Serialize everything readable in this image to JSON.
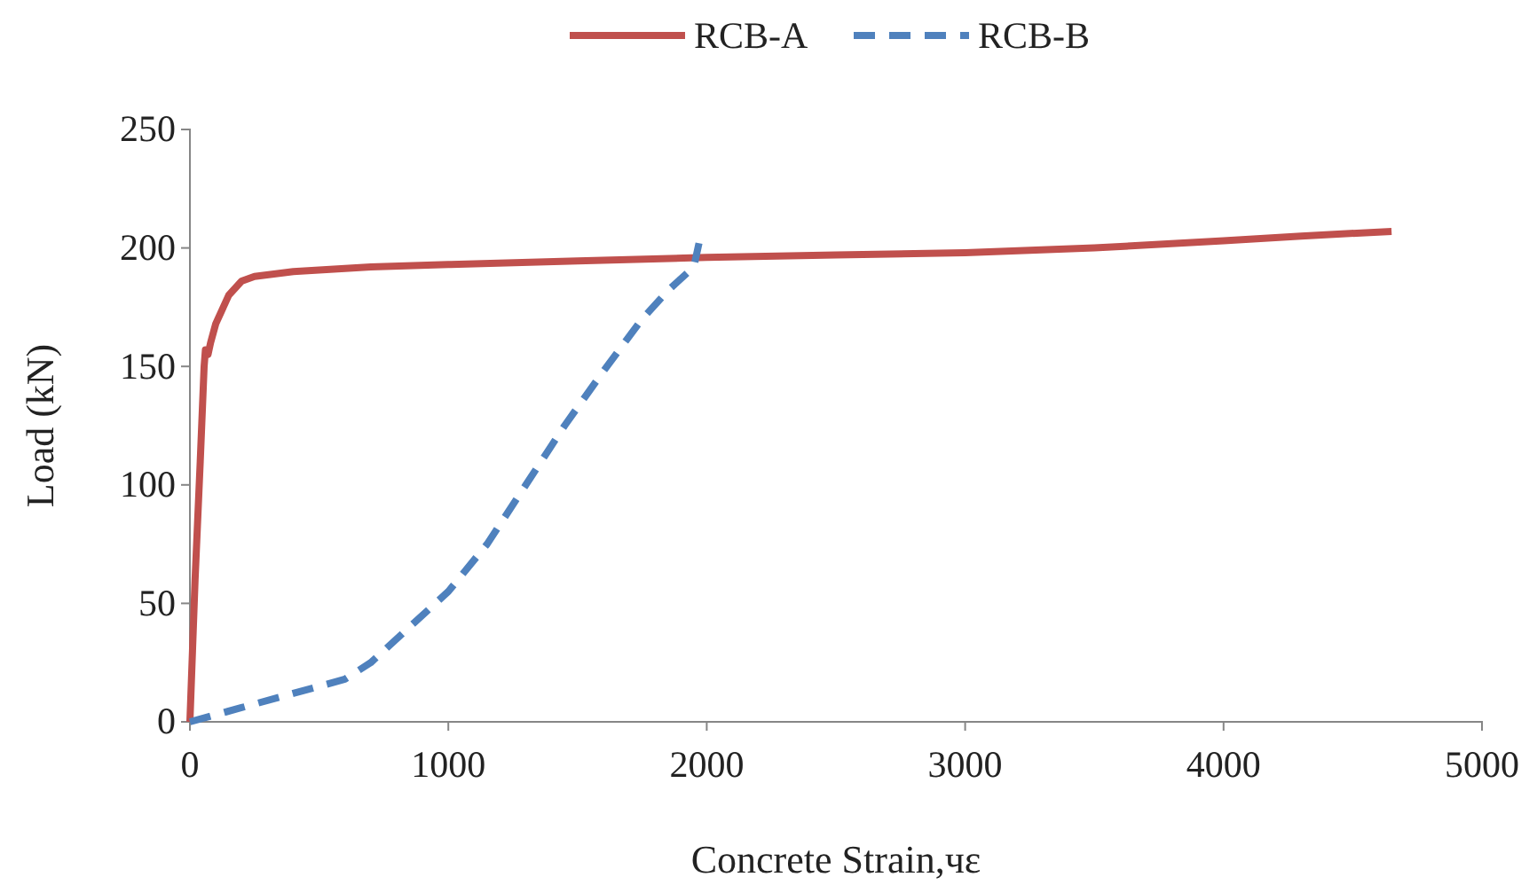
{
  "chart_data": {
    "type": "line",
    "xlabel": "Concrete Strain,чε",
    "ylabel": "Load (kN)",
    "xlim": [
      0,
      5000
    ],
    "xticks": [
      0,
      1000,
      2000,
      3000,
      4000,
      5000
    ],
    "ylim": [
      0,
      250
    ],
    "yticks": [
      0,
      50,
      100,
      150,
      200,
      250
    ],
    "grid": false,
    "legend": "top",
    "marker": "none",
    "series": [
      {
        "name": "RCB-A",
        "color": "#c0504d",
        "line_style": "solid",
        "x": [
          0,
          10,
          20,
          40,
          55,
          60,
          70,
          80,
          100,
          150,
          200,
          250,
          400,
          700,
          1000,
          1500,
          2000,
          2500,
          3000,
          3500,
          4000,
          4300,
          4650
        ],
        "values": [
          0,
          30,
          60,
          110,
          150,
          157,
          155,
          160,
          168,
          180,
          186,
          188,
          190,
          192,
          193,
          194.5,
          196,
          197,
          198,
          200,
          203,
          205,
          207
        ]
      },
      {
        "name": "RCB-B",
        "color": "#4f81bd",
        "line_style": "dashed",
        "x": [
          0,
          200,
          400,
          600,
          700,
          850,
          1000,
          1150,
          1300,
          1450,
          1600,
          1750,
          1850,
          1950,
          1970
        ],
        "values": [
          0,
          6,
          12,
          18,
          25,
          40,
          55,
          75,
          100,
          125,
          148,
          170,
          182,
          192,
          202
        ]
      }
    ]
  }
}
